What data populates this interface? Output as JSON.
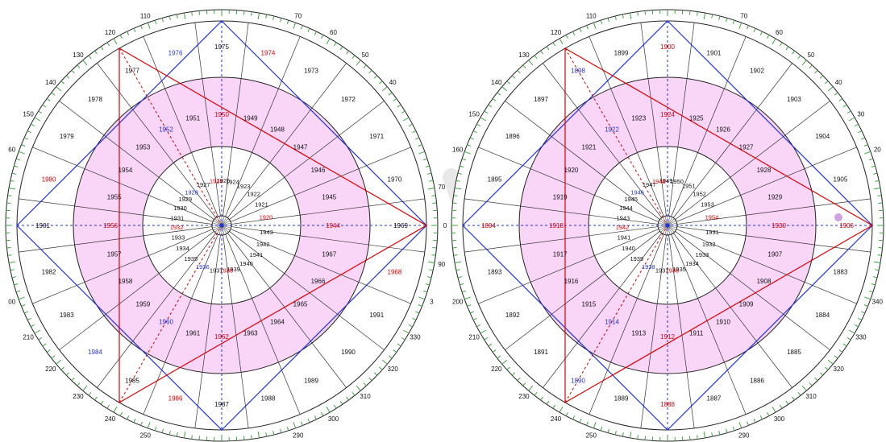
{
  "colors": {
    "ring_fill": "#f9d6f7",
    "rim_ticks": "#3aa83a",
    "spokes": "#333333",
    "blue": "#2233dd",
    "red": "#e00000",
    "text": "#111111",
    "watermark": "#d8d8d8"
  },
  "wheels": [
    {
      "id": "left",
      "degree_labels": [
        {
          "a": 110,
          "t": "110"
        },
        {
          "a": 70,
          "t": "70"
        },
        {
          "a": 120,
          "t": "120"
        },
        {
          "a": 130,
          "t": "130"
        },
        {
          "a": 60,
          "t": "60"
        },
        {
          "a": 50,
          "t": "50"
        },
        {
          "a": 140,
          "t": "140"
        },
        {
          "a": 40,
          "t": "40"
        },
        {
          "a": 150,
          "t": "150"
        },
        {
          "a": 160,
          "t": "60"
        },
        {
          "a": 200,
          "t": "00"
        },
        {
          "a": 210,
          "t": "210"
        },
        {
          "a": 220,
          "t": "220"
        },
        {
          "a": 230,
          "t": "230"
        },
        {
          "a": 240,
          "t": "240"
        },
        {
          "a": 250,
          "t": "250"
        },
        {
          "a": 290,
          "t": "290"
        },
        {
          "a": 300,
          "t": "300"
        },
        {
          "a": 310,
          "t": "310"
        },
        {
          "a": 320,
          "t": "320"
        },
        {
          "a": 330,
          "t": "330"
        },
        {
          "a": 0,
          "t": "0"
        },
        {
          "a": 340,
          "t": "3"
        },
        {
          "a": 10,
          "t": "70"
        },
        {
          "a": 350,
          "t": "90"
        }
      ],
      "outer": [
        {
          "a": 60,
          "t": "1973",
          "c": "text"
        },
        {
          "a": 45,
          "t": "1972",
          "c": "text"
        },
        {
          "a": 30,
          "t": "1971",
          "c": "text"
        },
        {
          "a": 15,
          "t": "1970",
          "c": "text"
        },
        {
          "a": 0,
          "t": "1969",
          "c": "text"
        },
        {
          "a": 345,
          "t": "1968",
          "c": "red"
        },
        {
          "a": 330,
          "t": "1991",
          "c": "text"
        },
        {
          "a": 315,
          "t": "1990",
          "c": "text"
        },
        {
          "a": 300,
          "t": "1989",
          "c": "text"
        },
        {
          "a": 285,
          "t": "1988",
          "c": "text"
        },
        {
          "a": 270,
          "t": "1987",
          "c": "text"
        },
        {
          "a": 255,
          "t": "1986",
          "c": "red"
        },
        {
          "a": 240,
          "t": "1985",
          "c": "text"
        },
        {
          "a": 225,
          "t": "1984",
          "c": "blue"
        },
        {
          "a": 210,
          "t": "1983",
          "c": "text"
        },
        {
          "a": 195,
          "t": "1982",
          "c": "text"
        },
        {
          "a": 180,
          "t": "1981",
          "c": "text"
        },
        {
          "a": 165,
          "t": "1980",
          "c": "red"
        },
        {
          "a": 150,
          "t": "1979",
          "c": "text"
        },
        {
          "a": 135,
          "t": "1978",
          "c": "text"
        },
        {
          "a": 120,
          "t": "1977",
          "c": "text"
        },
        {
          "a": 105,
          "t": "1976",
          "c": "blue"
        },
        {
          "a": 90,
          "t": "1975",
          "c": "text"
        },
        {
          "a": 75,
          "t": "1974",
          "c": "red"
        }
      ],
      "middle": [
        {
          "a": 75,
          "t": "1949",
          "c": "text"
        },
        {
          "a": 60,
          "t": "1948",
          "c": "text"
        },
        {
          "a": 45,
          "t": "1947",
          "c": "text"
        },
        {
          "a": 30,
          "t": "1946",
          "c": "text"
        },
        {
          "a": 15,
          "t": "1945",
          "c": "text"
        },
        {
          "a": 0,
          "t": "1944",
          "c": "red"
        },
        {
          "a": 345,
          "t": "1967",
          "c": "text"
        },
        {
          "a": 330,
          "t": "1966",
          "c": "text"
        },
        {
          "a": 315,
          "t": "1965",
          "c": "text"
        },
        {
          "a": 300,
          "t": "1964",
          "c": "text"
        },
        {
          "a": 285,
          "t": "1963",
          "c": "text"
        },
        {
          "a": 270,
          "t": "1962",
          "c": "red"
        },
        {
          "a": 255,
          "t": "1961",
          "c": "text"
        },
        {
          "a": 240,
          "t": "1960",
          "c": "blue"
        },
        {
          "a": 225,
          "t": "1959",
          "c": "text"
        },
        {
          "a": 210,
          "t": "1958",
          "c": "text"
        },
        {
          "a": 195,
          "t": "1957",
          "c": "text"
        },
        {
          "a": 180,
          "t": "1956",
          "c": "red"
        },
        {
          "a": 165,
          "t": "1955",
          "c": "text"
        },
        {
          "a": 150,
          "t": "1954",
          "c": "text"
        },
        {
          "a": 135,
          "t": "1953",
          "c": "text"
        },
        {
          "a": 120,
          "t": "1952",
          "c": "blue"
        },
        {
          "a": 105,
          "t": "1951",
          "c": "text"
        },
        {
          "a": 90,
          "t": "1950",
          "c": "red"
        }
      ],
      "inner": [
        {
          "a": 88,
          "t": "1925",
          "c": "text"
        },
        {
          "a": 76,
          "t": "1924",
          "c": "text"
        },
        {
          "a": 61,
          "t": "1923",
          "c": "text"
        },
        {
          "a": 45,
          "t": "1922",
          "c": "text"
        },
        {
          "a": 28,
          "t": "1921",
          "c": "text"
        },
        {
          "a": 11,
          "t": "1920",
          "c": "red"
        },
        {
          "a": 352,
          "t": "1943",
          "c": "text"
        },
        {
          "a": 336,
          "t": "1942",
          "c": "text"
        },
        {
          "a": 320,
          "t": "1941",
          "c": "text"
        },
        {
          "a": 303,
          "t": "1940",
          "c": "text"
        },
        {
          "a": 285,
          "t": "1939",
          "c": "text"
        },
        {
          "a": 276,
          "t": "1938",
          "c": "red"
        },
        {
          "a": 263,
          "t": "1937",
          "c": "text"
        },
        {
          "a": 245,
          "t": "1936",
          "c": "blue"
        },
        {
          "a": 227,
          "t": "1935",
          "c": "text"
        },
        {
          "a": 210,
          "t": "1934",
          "c": "text"
        },
        {
          "a": 195,
          "t": "1933",
          "c": "text"
        },
        {
          "a": 182,
          "t": "1932",
          "c": "red"
        },
        {
          "a": 170,
          "t": "1931",
          "c": "text"
        },
        {
          "a": 157,
          "t": "1930",
          "c": "text"
        },
        {
          "a": 144,
          "t": "1929",
          "c": "text"
        },
        {
          "a": 132,
          "t": "1928",
          "c": "blue"
        },
        {
          "a": 114,
          "t": "1927",
          "c": "text"
        },
        {
          "a": 97,
          "t": "1926",
          "c": "red"
        }
      ]
    },
    {
      "id": "right",
      "degree_labels": [
        {
          "a": 110,
          "t": "110"
        },
        {
          "a": 70,
          "t": "70"
        },
        {
          "a": 120,
          "t": "120"
        },
        {
          "a": 130,
          "t": "130"
        },
        {
          "a": 60,
          "t": "60"
        },
        {
          "a": 50,
          "t": "50"
        },
        {
          "a": 140,
          "t": "140"
        },
        {
          "a": 40,
          "t": "40"
        },
        {
          "a": 150,
          "t": "150"
        },
        {
          "a": 30,
          "t": "30"
        },
        {
          "a": 160,
          "t": "160"
        },
        {
          "a": 20,
          "t": "20"
        },
        {
          "a": 200,
          "t": "200"
        },
        {
          "a": 340,
          "t": "340"
        },
        {
          "a": 210,
          "t": "210"
        },
        {
          "a": 330,
          "t": "330"
        },
        {
          "a": 220,
          "t": "220"
        },
        {
          "a": 320,
          "t": "320"
        },
        {
          "a": 230,
          "t": "230"
        },
        {
          "a": 310,
          "t": "310"
        },
        {
          "a": 240,
          "t": "240"
        },
        {
          "a": 300,
          "t": "300"
        },
        {
          "a": 250,
          "t": "250"
        },
        {
          "a": 290,
          "t": "290"
        }
      ],
      "outer": [
        {
          "a": 75,
          "t": "1901",
          "c": "text"
        },
        {
          "a": 60,
          "t": "1902",
          "c": "text"
        },
        {
          "a": 45,
          "t": "1903",
          "c": "text"
        },
        {
          "a": 30,
          "t": "1904",
          "c": "text"
        },
        {
          "a": 15,
          "t": "1905",
          "c": "text"
        },
        {
          "a": 0,
          "t": "1906",
          "c": "red"
        },
        {
          "a": 345,
          "t": "1883",
          "c": "text"
        },
        {
          "a": 330,
          "t": "1884",
          "c": "text"
        },
        {
          "a": 315,
          "t": "1885",
          "c": "text"
        },
        {
          "a": 300,
          "t": "1886",
          "c": "text"
        },
        {
          "a": 285,
          "t": "1887",
          "c": "text"
        },
        {
          "a": 270,
          "t": "1888",
          "c": "red"
        },
        {
          "a": 255,
          "t": "1889",
          "c": "text"
        },
        {
          "a": 240,
          "t": "1890",
          "c": "blue"
        },
        {
          "a": 225,
          "t": "1891",
          "c": "text"
        },
        {
          "a": 210,
          "t": "1892",
          "c": "text"
        },
        {
          "a": 195,
          "t": "1893",
          "c": "text"
        },
        {
          "a": 180,
          "t": "1894",
          "c": "red"
        },
        {
          "a": 165,
          "t": "1895",
          "c": "text"
        },
        {
          "a": 150,
          "t": "1896",
          "c": "text"
        },
        {
          "a": 135,
          "t": "1897",
          "c": "text"
        },
        {
          "a": 120,
          "t": "1898",
          "c": "blue"
        },
        {
          "a": 105,
          "t": "1899",
          "c": "text"
        },
        {
          "a": 90,
          "t": "1900",
          "c": "red"
        }
      ],
      "middle": [
        {
          "a": 75,
          "t": "1925",
          "c": "text"
        },
        {
          "a": 60,
          "t": "1926",
          "c": "text"
        },
        {
          "a": 45,
          "t": "1927",
          "c": "text"
        },
        {
          "a": 30,
          "t": "1928",
          "c": "text"
        },
        {
          "a": 15,
          "t": "1929",
          "c": "text"
        },
        {
          "a": 0,
          "t": "1930",
          "c": "red"
        },
        {
          "a": 345,
          "t": "1907",
          "c": "text"
        },
        {
          "a": 330,
          "t": "1908",
          "c": "text"
        },
        {
          "a": 315,
          "t": "1909",
          "c": "text"
        },
        {
          "a": 300,
          "t": "1910",
          "c": "text"
        },
        {
          "a": 285,
          "t": "1911",
          "c": "text"
        },
        {
          "a": 270,
          "t": "1912",
          "c": "red"
        },
        {
          "a": 255,
          "t": "1913",
          "c": "text"
        },
        {
          "a": 240,
          "t": "1914",
          "c": "blue"
        },
        {
          "a": 225,
          "t": "1915",
          "c": "text"
        },
        {
          "a": 210,
          "t": "1916",
          "c": "text"
        },
        {
          "a": 195,
          "t": "1917",
          "c": "text"
        },
        {
          "a": 180,
          "t": "1918",
          "c": "red"
        },
        {
          "a": 165,
          "t": "1919",
          "c": "text"
        },
        {
          "a": 150,
          "t": "1920",
          "c": "text"
        },
        {
          "a": 135,
          "t": "1921",
          "c": "text"
        },
        {
          "a": 120,
          "t": "1922",
          "c": "blue"
        },
        {
          "a": 105,
          "t": "1923",
          "c": "text"
        },
        {
          "a": 90,
          "t": "1924",
          "c": "red"
        }
      ],
      "inner": [
        {
          "a": 92,
          "t": "1949",
          "c": "text"
        },
        {
          "a": 78,
          "t": "1950",
          "c": "text"
        },
        {
          "a": 62,
          "t": "1951",
          "c": "text"
        },
        {
          "a": 45,
          "t": "1952",
          "c": "text"
        },
        {
          "a": 28,
          "t": "1953",
          "c": "text"
        },
        {
          "a": 11,
          "t": "1954",
          "c": "red"
        },
        {
          "a": 352,
          "t": "1931",
          "c": "text"
        },
        {
          "a": 336,
          "t": "1932",
          "c": "text"
        },
        {
          "a": 320,
          "t": "1933",
          "c": "text"
        },
        {
          "a": 303,
          "t": "1934",
          "c": "text"
        },
        {
          "a": 285,
          "t": "1935",
          "c": "text"
        },
        {
          "a": 276,
          "t": "1936",
          "c": "red"
        },
        {
          "a": 263,
          "t": "1937",
          "c": "text"
        },
        {
          "a": 245,
          "t": "1938",
          "c": "blue"
        },
        {
          "a": 227,
          "t": "1939",
          "c": "text"
        },
        {
          "a": 210,
          "t": "1940",
          "c": "text"
        },
        {
          "a": 195,
          "t": "1941",
          "c": "text"
        },
        {
          "a": 182,
          "t": "1942",
          "c": "red"
        },
        {
          "a": 170,
          "t": "1943",
          "c": "text"
        },
        {
          "a": 157,
          "t": "1944",
          "c": "text"
        },
        {
          "a": 144,
          "t": "1945",
          "c": "text"
        },
        {
          "a": 132,
          "t": "1946",
          "c": "blue"
        },
        {
          "a": 114,
          "t": "1947",
          "c": "text"
        },
        {
          "a": 101,
          "t": "1948",
          "c": "red"
        }
      ]
    }
  ]
}
